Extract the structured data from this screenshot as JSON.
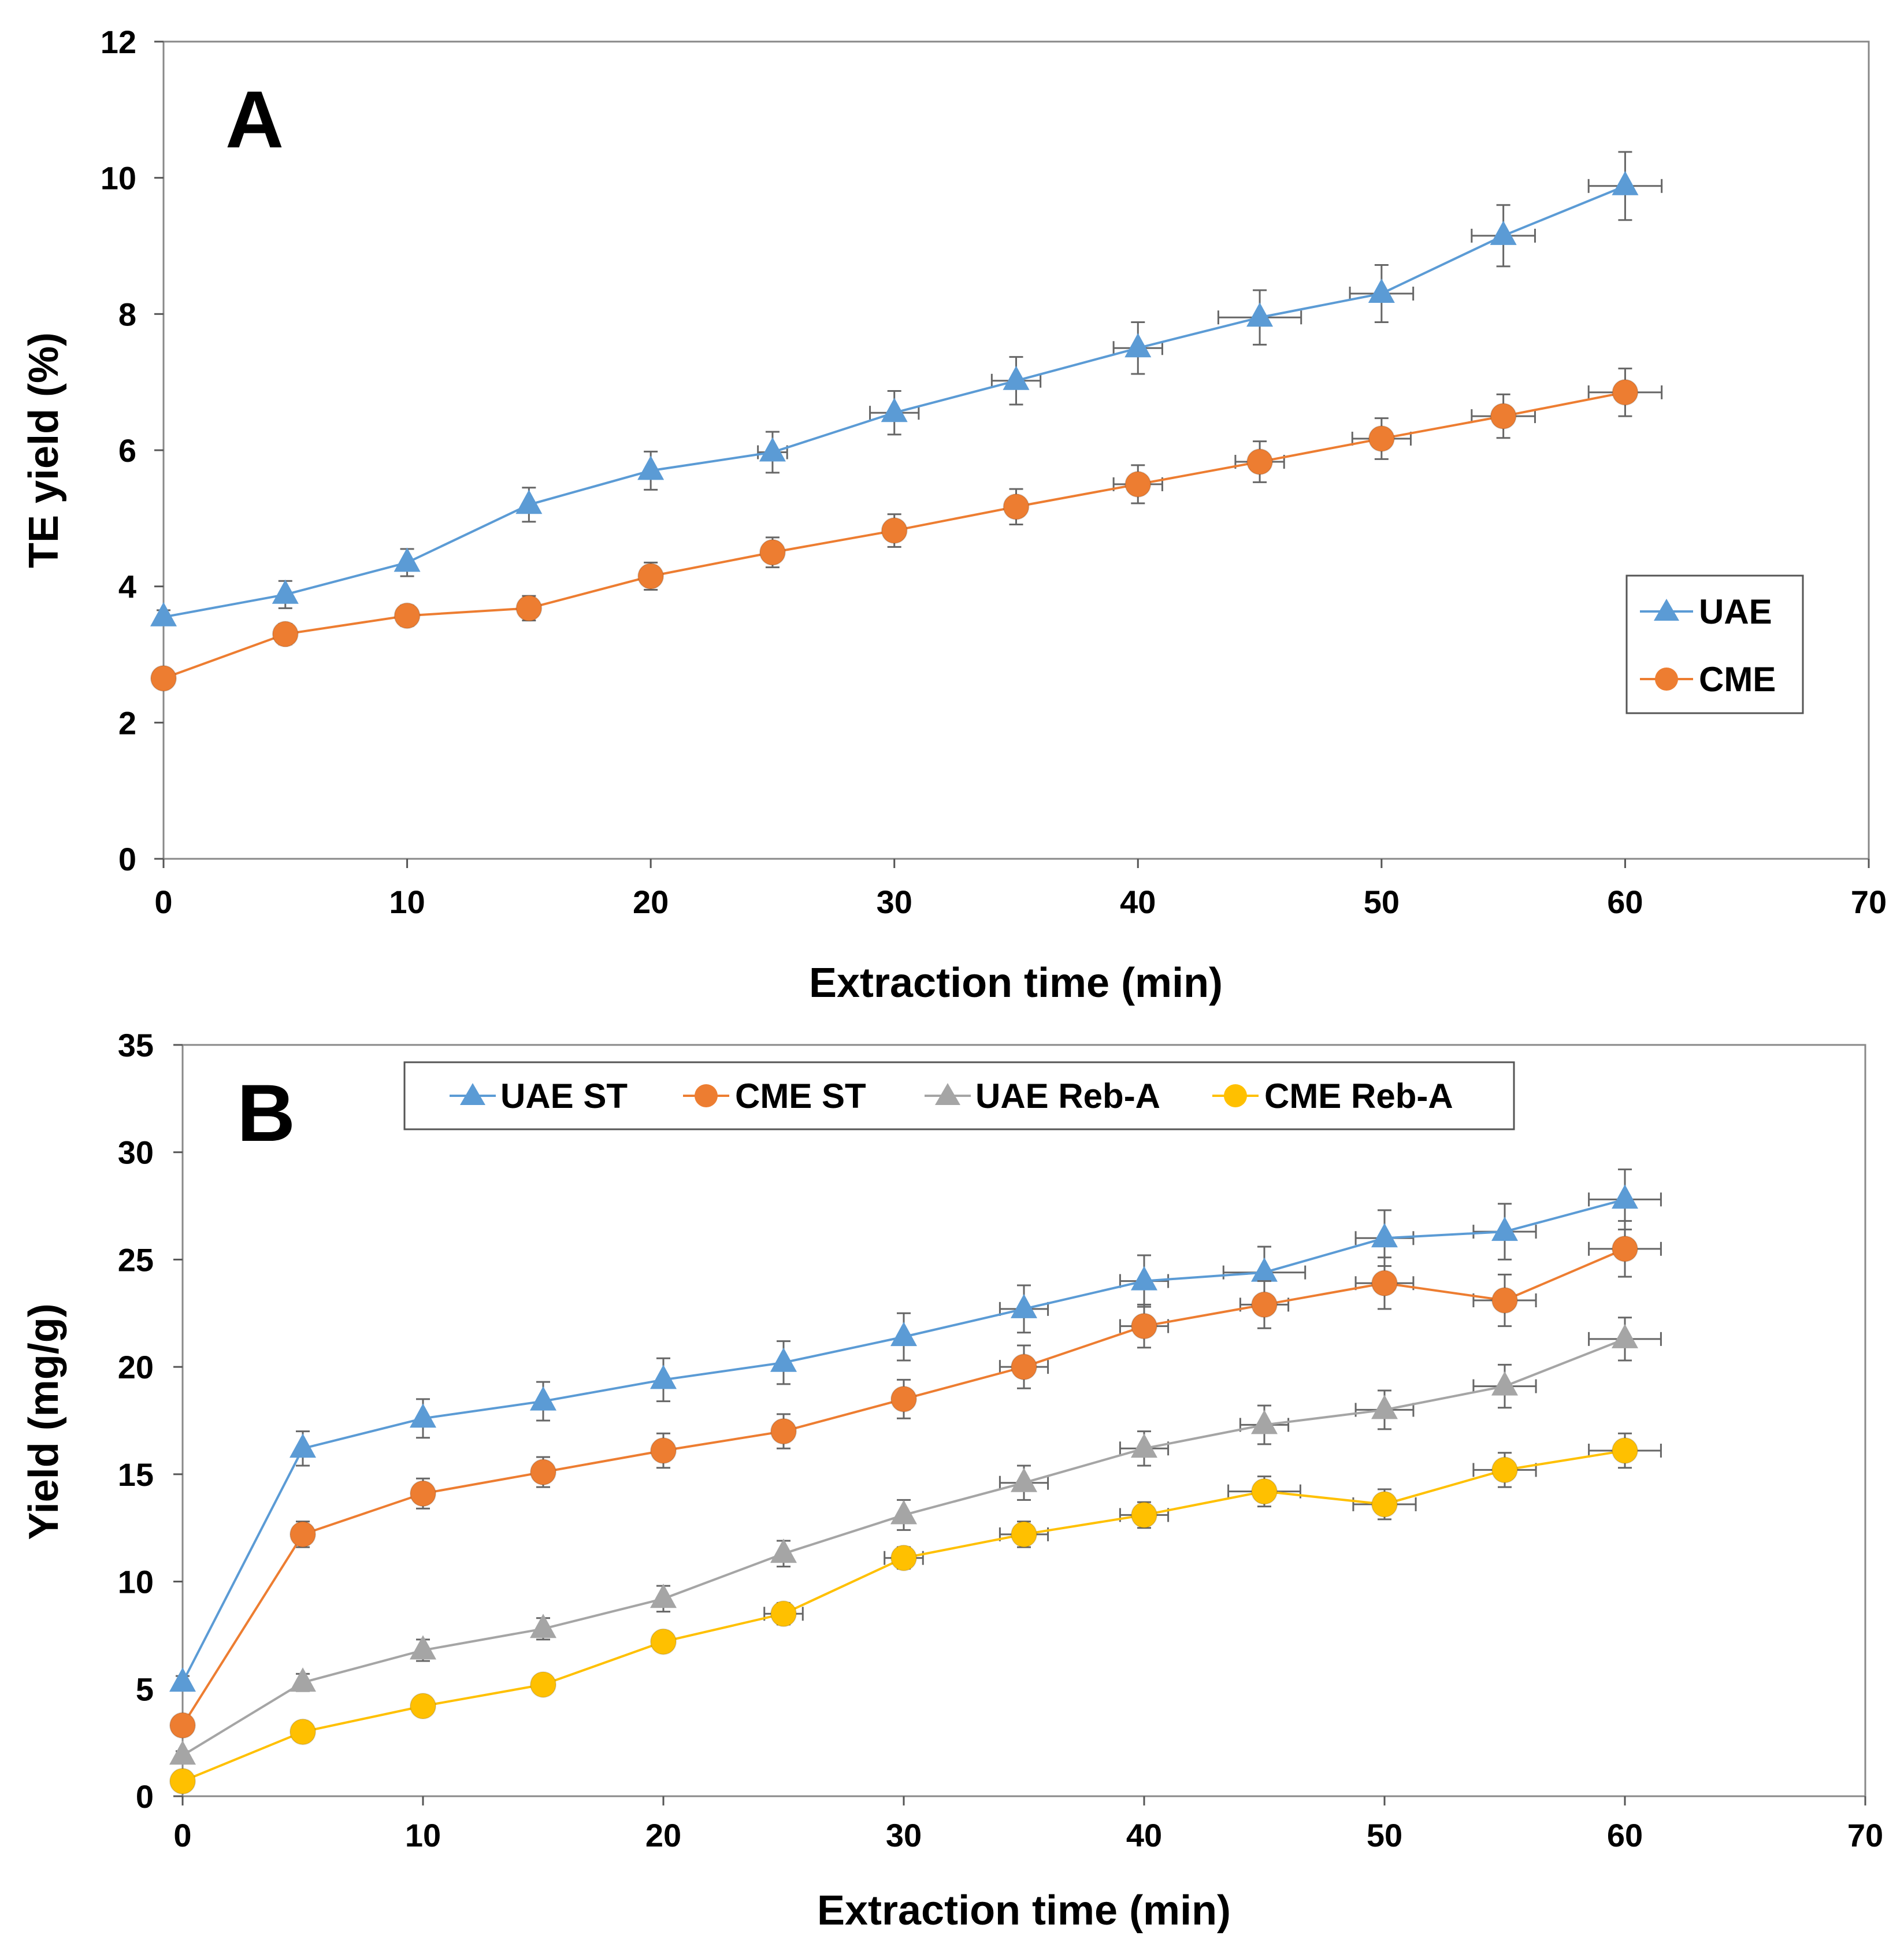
{
  "chart_data": [
    {
      "type": "line",
      "panel_label": "A",
      "xlabel": "Extraction time (min)",
      "ylabel": "TE yield (%)",
      "xlim": [
        0,
        70
      ],
      "ylim": [
        0,
        12
      ],
      "xticks": [
        0,
        10,
        20,
        30,
        40,
        50,
        60,
        70
      ],
      "yticks": [
        0,
        2,
        4,
        6,
        8,
        10,
        12
      ],
      "grid": false,
      "legend_position": "center-right",
      "x": [
        0,
        5,
        10,
        15,
        20,
        25,
        30,
        35,
        40,
        45,
        50,
        55,
        60
      ],
      "series": [
        {
          "name": "UAE",
          "color": "#5B9BD5",
          "marker": "triangle",
          "values": [
            3.55,
            3.88,
            4.35,
            5.2,
            5.7,
            5.97,
            6.55,
            7.02,
            7.5,
            7.95,
            8.3,
            9.15,
            9.88
          ],
          "y_error": [
            0.1,
            0.2,
            0.2,
            0.25,
            0.28,
            0.3,
            0.32,
            0.35,
            0.38,
            0.4,
            0.42,
            0.45,
            0.5
          ],
          "x_error": [
            0,
            0,
            0,
            0,
            0,
            0.6,
            1.0,
            1.0,
            1.0,
            1.7,
            1.3,
            1.3,
            1.5
          ]
        },
        {
          "name": "CME",
          "color": "#ED7D31",
          "marker": "circle",
          "values": [
            2.65,
            3.3,
            3.57,
            3.68,
            4.15,
            4.5,
            4.82,
            5.17,
            5.5,
            5.83,
            6.17,
            6.5,
            6.85
          ],
          "y_error": [
            0.12,
            0.15,
            0.15,
            0.18,
            0.2,
            0.22,
            0.24,
            0.26,
            0.28,
            0.3,
            0.3,
            0.32,
            0.35
          ],
          "x_error": [
            0,
            0,
            0,
            0,
            0,
            0,
            0,
            0,
            1.0,
            1.0,
            1.2,
            1.3,
            1.5
          ]
        }
      ]
    },
    {
      "type": "line",
      "panel_label": "B",
      "xlabel": "Extraction time (min)",
      "ylabel": "Yield (mg/g)",
      "xlim": [
        0,
        70
      ],
      "ylim": [
        0,
        35
      ],
      "xticks": [
        0,
        10,
        20,
        30,
        40,
        50,
        60,
        70
      ],
      "yticks": [
        0,
        5,
        10,
        15,
        20,
        25,
        30,
        35
      ],
      "grid": false,
      "legend_position": "top",
      "x": [
        0,
        5,
        10,
        15,
        20,
        25,
        30,
        35,
        40,
        45,
        50,
        55,
        60
      ],
      "series": [
        {
          "name": "UAE ST",
          "color": "#5B9BD5",
          "marker": "triangle",
          "values": [
            5.3,
            16.2,
            17.6,
            18.4,
            19.4,
            20.2,
            21.4,
            22.7,
            24.0,
            24.4,
            26.0,
            26.3,
            27.8
          ],
          "y_error": [
            0.3,
            0.8,
            0.9,
            0.9,
            1.0,
            1.0,
            1.1,
            1.1,
            1.2,
            1.2,
            1.3,
            1.3,
            1.4
          ],
          "x_error": [
            0,
            0,
            0,
            0,
            0,
            0,
            0,
            1.0,
            1.0,
            1.7,
            1.2,
            1.3,
            1.5
          ]
        },
        {
          "name": "CME ST",
          "color": "#ED7D31",
          "marker": "circle",
          "values": [
            3.3,
            12.2,
            14.1,
            15.1,
            16.1,
            17.0,
            18.5,
            20.0,
            21.9,
            22.9,
            23.9,
            23.1,
            25.5
          ],
          "y_error": [
            0.2,
            0.6,
            0.7,
            0.7,
            0.8,
            0.8,
            0.9,
            1.0,
            1.0,
            1.1,
            1.2,
            1.2,
            1.3
          ],
          "x_error": [
            0,
            0,
            0,
            0,
            0,
            0,
            0,
            1.0,
            1.0,
            1.0,
            1.2,
            1.3,
            1.5
          ]
        },
        {
          "name": "UAE Reb-A",
          "color": "#A5A5A5",
          "marker": "triangle",
          "values": [
            1.9,
            5.3,
            6.8,
            7.8,
            9.2,
            11.3,
            13.1,
            14.6,
            16.2,
            17.3,
            18.0,
            19.1,
            21.3
          ],
          "y_error": [
            0.2,
            0.4,
            0.5,
            0.5,
            0.6,
            0.6,
            0.7,
            0.8,
            0.8,
            0.9,
            0.9,
            1.0,
            1.0
          ],
          "x_error": [
            0,
            0,
            0,
            0,
            0,
            0,
            0,
            1.0,
            1.0,
            1.0,
            1.2,
            1.3,
            1.5
          ]
        },
        {
          "name": "CME Reb-A",
          "color": "#FFC000",
          "marker": "circle",
          "values": [
            0.7,
            3.0,
            4.2,
            5.2,
            7.2,
            8.5,
            11.1,
            12.2,
            13.1,
            14.2,
            13.6,
            15.2,
            16.1
          ],
          "y_error": [
            0.1,
            0.3,
            0.3,
            0.4,
            0.4,
            0.5,
            0.5,
            0.6,
            0.6,
            0.7,
            0.7,
            0.8,
            0.8
          ],
          "x_error": [
            0,
            0,
            0,
            0,
            0,
            0.8,
            0.8,
            1.0,
            1.0,
            1.5,
            1.3,
            1.3,
            1.5
          ]
        }
      ]
    }
  ]
}
